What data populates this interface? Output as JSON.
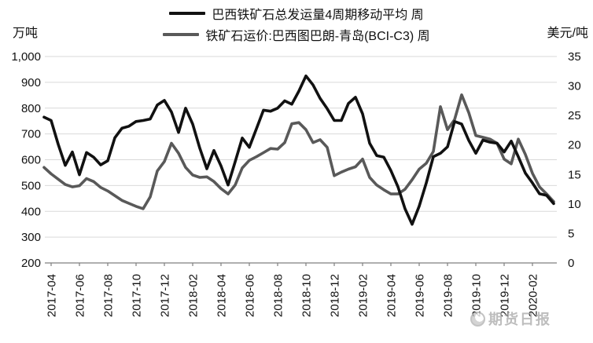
{
  "legend": {
    "items": [
      {
        "label": "巴西铁矿石总发运量4周期移动平均 周",
        "color": "#111111"
      },
      {
        "label": "铁矿石运价:巴西图巴朗-青岛(BCI-C3) 周",
        "color": "#595959"
      }
    ]
  },
  "left_axis": {
    "title": "万吨",
    "tick_labels": [
      "1,000",
      "900",
      "800",
      "700",
      "600",
      "500",
      "400",
      "300",
      "200"
    ],
    "min": 200,
    "max": 1000
  },
  "right_axis": {
    "title": "美元/吨",
    "tick_labels": [
      "35",
      "30",
      "25",
      "20",
      "15",
      "10",
      "5",
      "0"
    ],
    "min": 0,
    "max": 35
  },
  "x_axis": {
    "tick_labels": [
      "2017-04",
      "2017-06",
      "2017-08",
      "2017-10",
      "2017-12",
      "2018-02",
      "2018-04",
      "2018-06",
      "2018-08",
      "2018-10",
      "2018-12",
      "2019-02",
      "2019-04",
      "2019-06",
      "2019-08",
      "2019-10",
      "2019-12",
      "2020-02"
    ]
  },
  "watermark": {
    "text": "期货日报"
  },
  "colors": {
    "grid": "#d9d9d9",
    "axis": "#7f7f7f",
    "text": "#111111"
  },
  "chart_data": {
    "type": "line",
    "title": "",
    "x_start": "2017-03-16",
    "x_interval": "half-month (weekly data sampled fortnightly)",
    "x_tick_labels": [
      "2017-04",
      "2017-06",
      "2017-08",
      "2017-10",
      "2017-12",
      "2018-02",
      "2018-04",
      "2018-06",
      "2018-08",
      "2018-10",
      "2018-12",
      "2019-02",
      "2019-04",
      "2019-06",
      "2019-08",
      "2019-10",
      "2019-12",
      "2020-02"
    ],
    "grid": true,
    "legend_position": "top-center",
    "series": [
      {
        "name": "巴西铁矿石总发运量4周期移动平均 周",
        "axis": "left",
        "unit": "万吨",
        "ylim": [
          200,
          1000
        ],
        "color": "#111111",
        "values": [
          765,
          752,
          660,
          578,
          630,
          542,
          628,
          610,
          580,
          596,
          685,
          722,
          730,
          748,
          752,
          758,
          812,
          830,
          785,
          706,
          800,
          738,
          645,
          565,
          636,
          576,
          502,
          592,
          684,
          648,
          720,
          792,
          788,
          800,
          828,
          815,
          866,
          925,
          890,
          838,
          798,
          752,
          752,
          818,
          842,
          778,
          664,
          616,
          610,
          558,
          495,
          410,
          350,
          420,
          510,
          612,
          625,
          650,
          748,
          738,
          675,
          625,
          676,
          668,
          664,
          630,
          672,
          612,
          548,
          510,
          468,
          462,
          430
        ]
      },
      {
        "name": "铁矿石运价:巴西图巴朗-青岛(BCI-C3) 周",
        "axis": "right",
        "unit": "美元/吨",
        "ylim": [
          0,
          35
        ],
        "color": "#595959",
        "values": [
          16.2,
          15.1,
          14.2,
          13.3,
          12.9,
          13.1,
          14.3,
          13.8,
          12.8,
          12.2,
          11.4,
          10.6,
          10.1,
          9.6,
          9.2,
          11.2,
          15.6,
          17.2,
          20.3,
          18.6,
          16.2,
          14.9,
          14.5,
          14.6,
          13.8,
          12.6,
          11.7,
          13.2,
          16.1,
          17.4,
          18.0,
          18.7,
          19.4,
          19.3,
          20.4,
          23.6,
          23.8,
          22.6,
          20.4,
          20.9,
          19.6,
          14.8,
          15.4,
          15.9,
          16.3,
          17.6,
          14.5,
          13.2,
          12.4,
          11.7,
          11.7,
          12.5,
          14.1,
          15.9,
          16.9,
          18.9,
          26.5,
          22.6,
          24.3,
          28.5,
          25.5,
          21.6,
          21.3,
          21.0,
          20.3,
          17.6,
          16.8,
          21.0,
          18.4,
          15.2,
          12.9,
          11.7,
          10.4
        ]
      }
    ]
  }
}
